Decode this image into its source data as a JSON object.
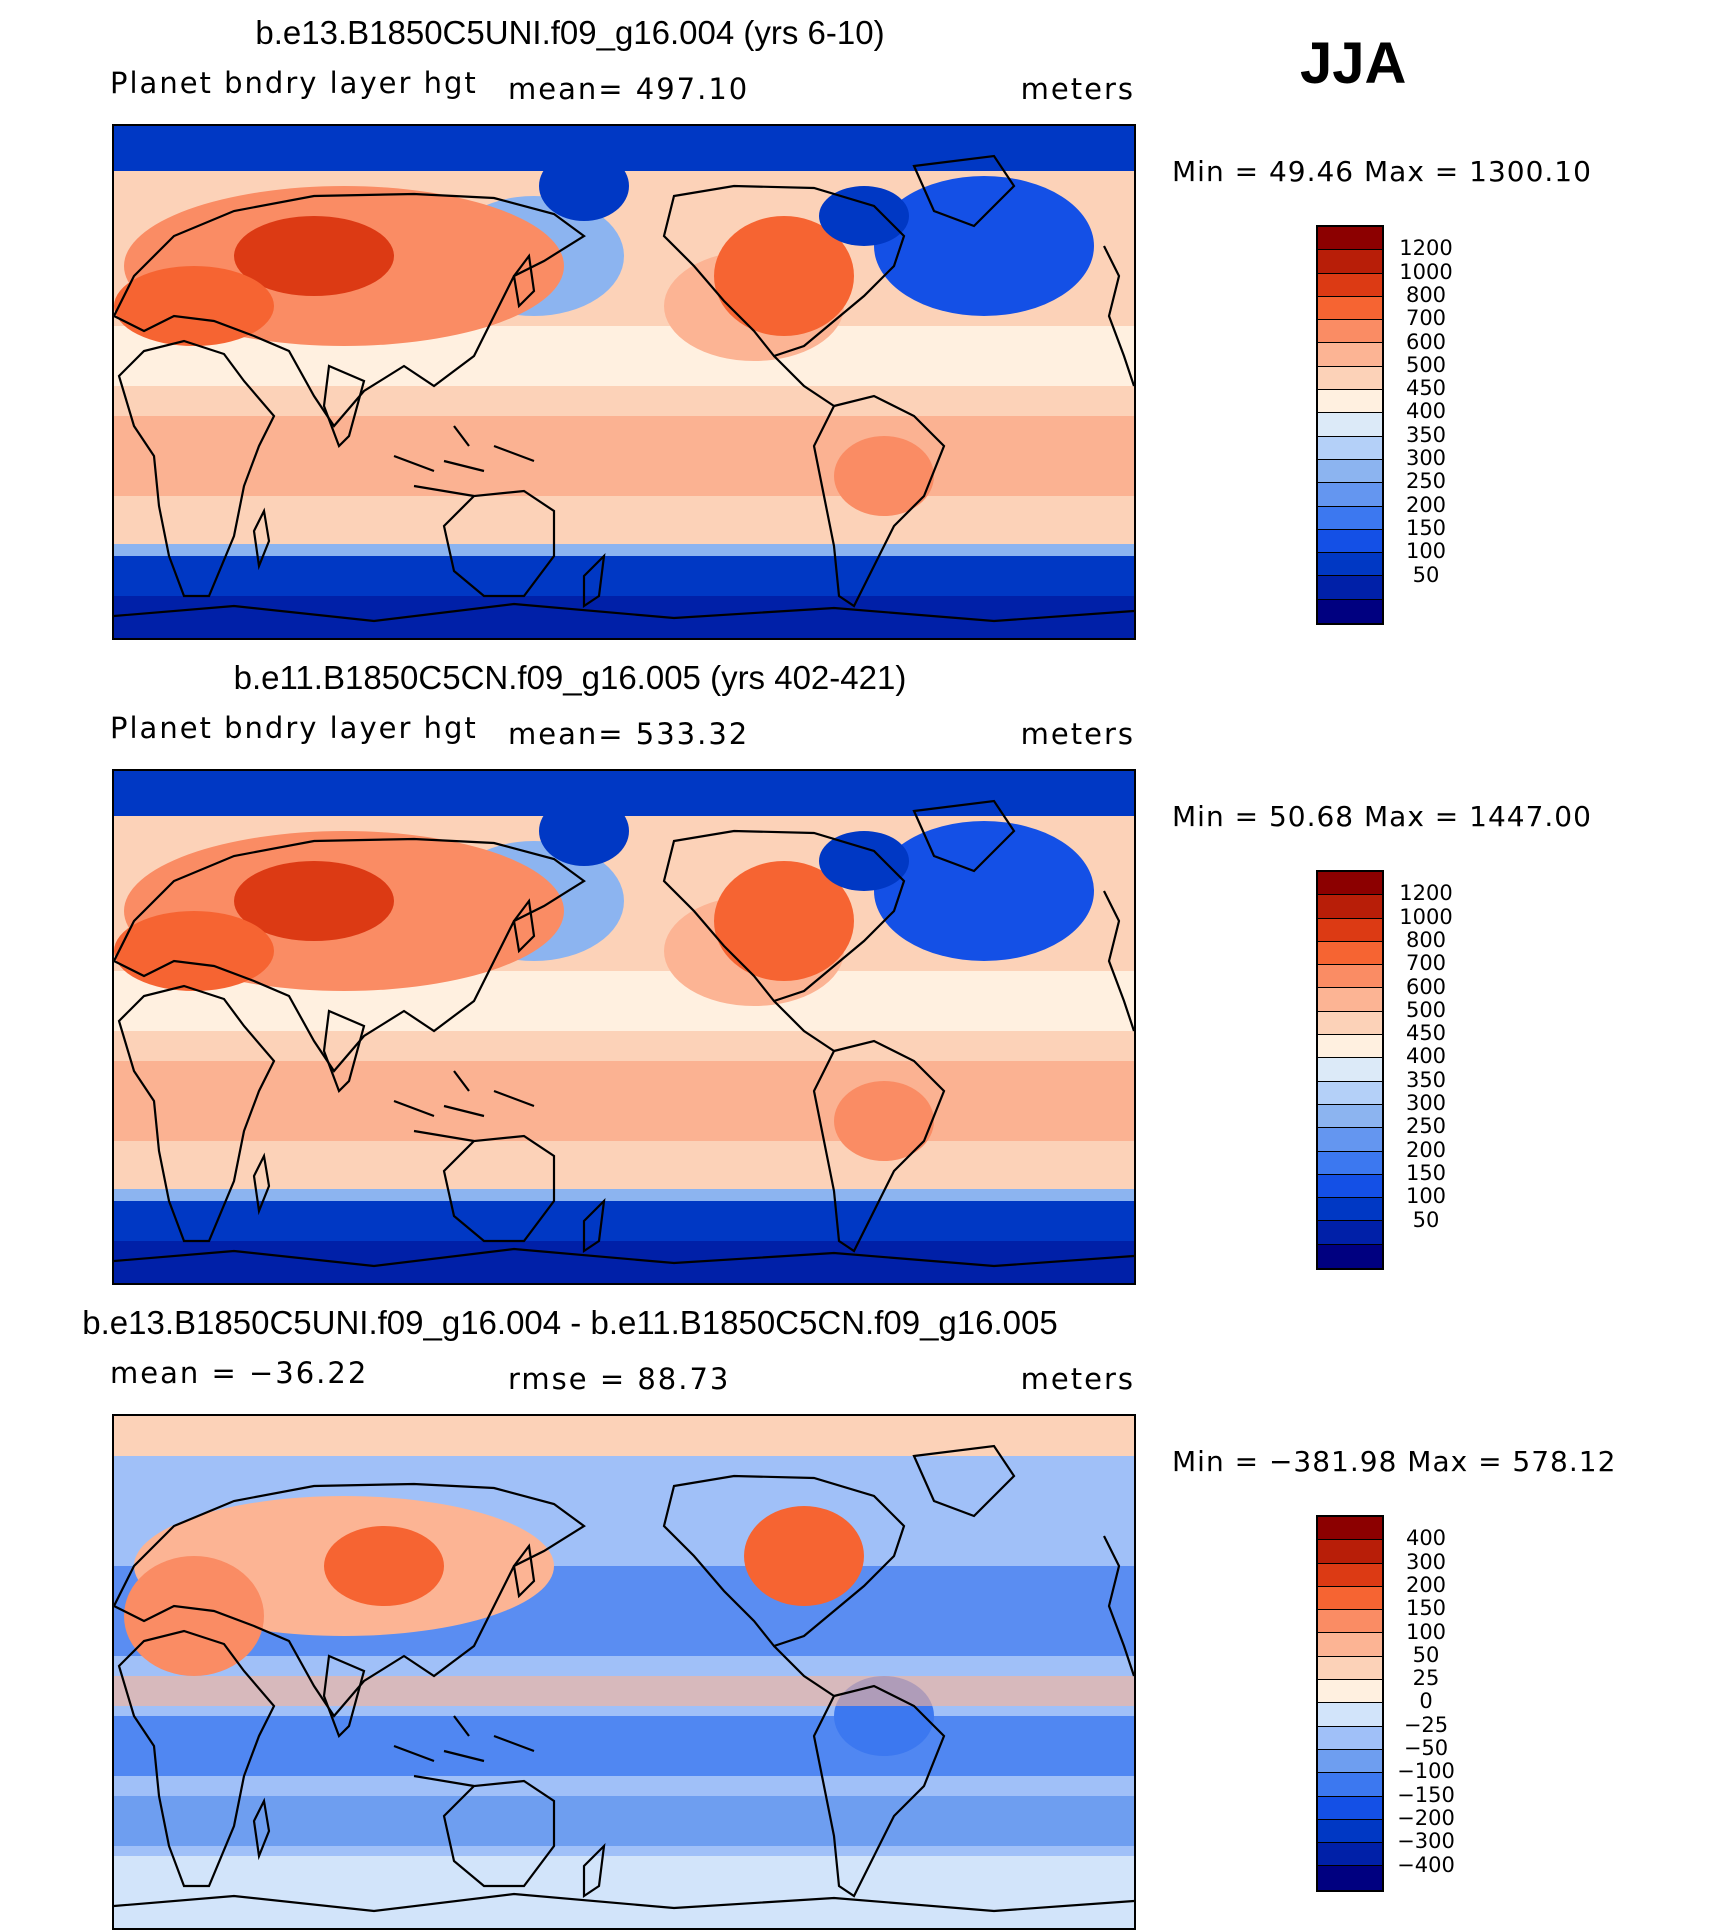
{
  "season": "JJA",
  "colors": {
    "abs": [
      "#000080",
      "#0020a8",
      "#0038c4",
      "#1450e6",
      "#3c78f0",
      "#6496f0",
      "#8cb4f0",
      "#b4d0f8",
      "#dceaf8",
      "#fff0e0",
      "#fcd2b8",
      "#fcb494",
      "#fa8c64",
      "#f66432",
      "#dc3a14",
      "#b81e08",
      "#8c0000"
    ],
    "diff": [
      "#000080",
      "#0020a8",
      "#0038c4",
      "#1450e6",
      "#3c78f0",
      "#6e9ef0",
      "#a0c0f8",
      "#d2e4fa",
      "#fff0e0",
      "#fcd2b8",
      "#fcb494",
      "#fa8c64",
      "#f66432",
      "#dc3a14",
      "#b81e08",
      "#8c0000"
    ]
  },
  "panels": [
    {
      "title": "b.e13.B1850C5UNI.f09_g16.004 (yrs 6-10)",
      "subtitle_left": "Planet bndry layer hgt",
      "subtitle_mid": "mean= 497.10",
      "units": "meters",
      "minmax": "Min =   49.46 Max = 1300.10",
      "palette": "abs",
      "levels": [
        "1200",
        "1000",
        "800",
        "700",
        "600",
        "500",
        "450",
        "400",
        "350",
        "300",
        "250",
        "200",
        "150",
        "100",
        "50"
      ]
    },
    {
      "title": "b.e11.B1850C5CN.f09_g16.005 (yrs 402-421)",
      "subtitle_left": "Planet bndry layer hgt",
      "subtitle_mid": "mean= 533.32",
      "units": "meters",
      "minmax": "Min =   50.68 Max = 1447.00",
      "palette": "abs",
      "levels": [
        "1200",
        "1000",
        "800",
        "700",
        "600",
        "500",
        "450",
        "400",
        "350",
        "300",
        "250",
        "200",
        "150",
        "100",
        "50"
      ]
    },
    {
      "title": "b.e13.B1850C5UNI.f09_g16.004 - b.e11.B1850C5CN.f09_g16.005",
      "subtitle_left": "mean = −36.22",
      "subtitle_mid": "rmse =   88.73",
      "units": "meters",
      "minmax": "Min = −381.98 Max = 578.12",
      "palette": "diff",
      "levels": [
        "400",
        "300",
        "200",
        "150",
        "100",
        "50",
        "25",
        "0",
        "−25",
        "−50",
        "−100",
        "−150",
        "−200",
        "−300",
        "−400"
      ]
    }
  ]
}
